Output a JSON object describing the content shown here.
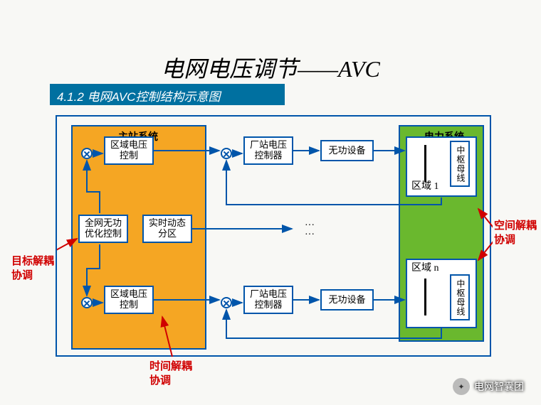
{
  "title": "电网电压调节——AVC",
  "subtitle": "4.1.2 电网AVC控制结构示意图",
  "mainSystem": {
    "label": "主站系统",
    "bg": "#f5a623"
  },
  "powerSystem": {
    "label": "电力系统",
    "bg": "#6ab82e"
  },
  "boxes": {
    "areaVolt1": "区域电压\n控制",
    "areaVolt2": "区域电压\n控制",
    "globalOpt": "全网无功\n优化控制",
    "rtPartition": "实时动态\n分区",
    "plantCtrl1": "厂站电压\n控制器",
    "plantCtrl2": "厂站电压\n控制器",
    "reactive1": "无功设备",
    "reactive2": "无功设备",
    "zone1": "区域 1",
    "zonen": "区域 n",
    "bus1": "中枢母线",
    "bus2": "中枢母线"
  },
  "annotations": {
    "targetDecouple": "目标解耦",
    "coord1": "协调",
    "timeDecouple": "时间解耦",
    "coord2": "协调",
    "spaceDecouple": "空间解耦",
    "coord3": "协调"
  },
  "dotsSymbol": "···\n···",
  "watermark": "电网智囊团",
  "colors": {
    "border": "#0055aa",
    "arrow": "#0055aa",
    "red": "#d00000",
    "mainBg": "#f5a623",
    "powerBg": "#6ab82e",
    "pageBg": "#f8f8f5"
  }
}
